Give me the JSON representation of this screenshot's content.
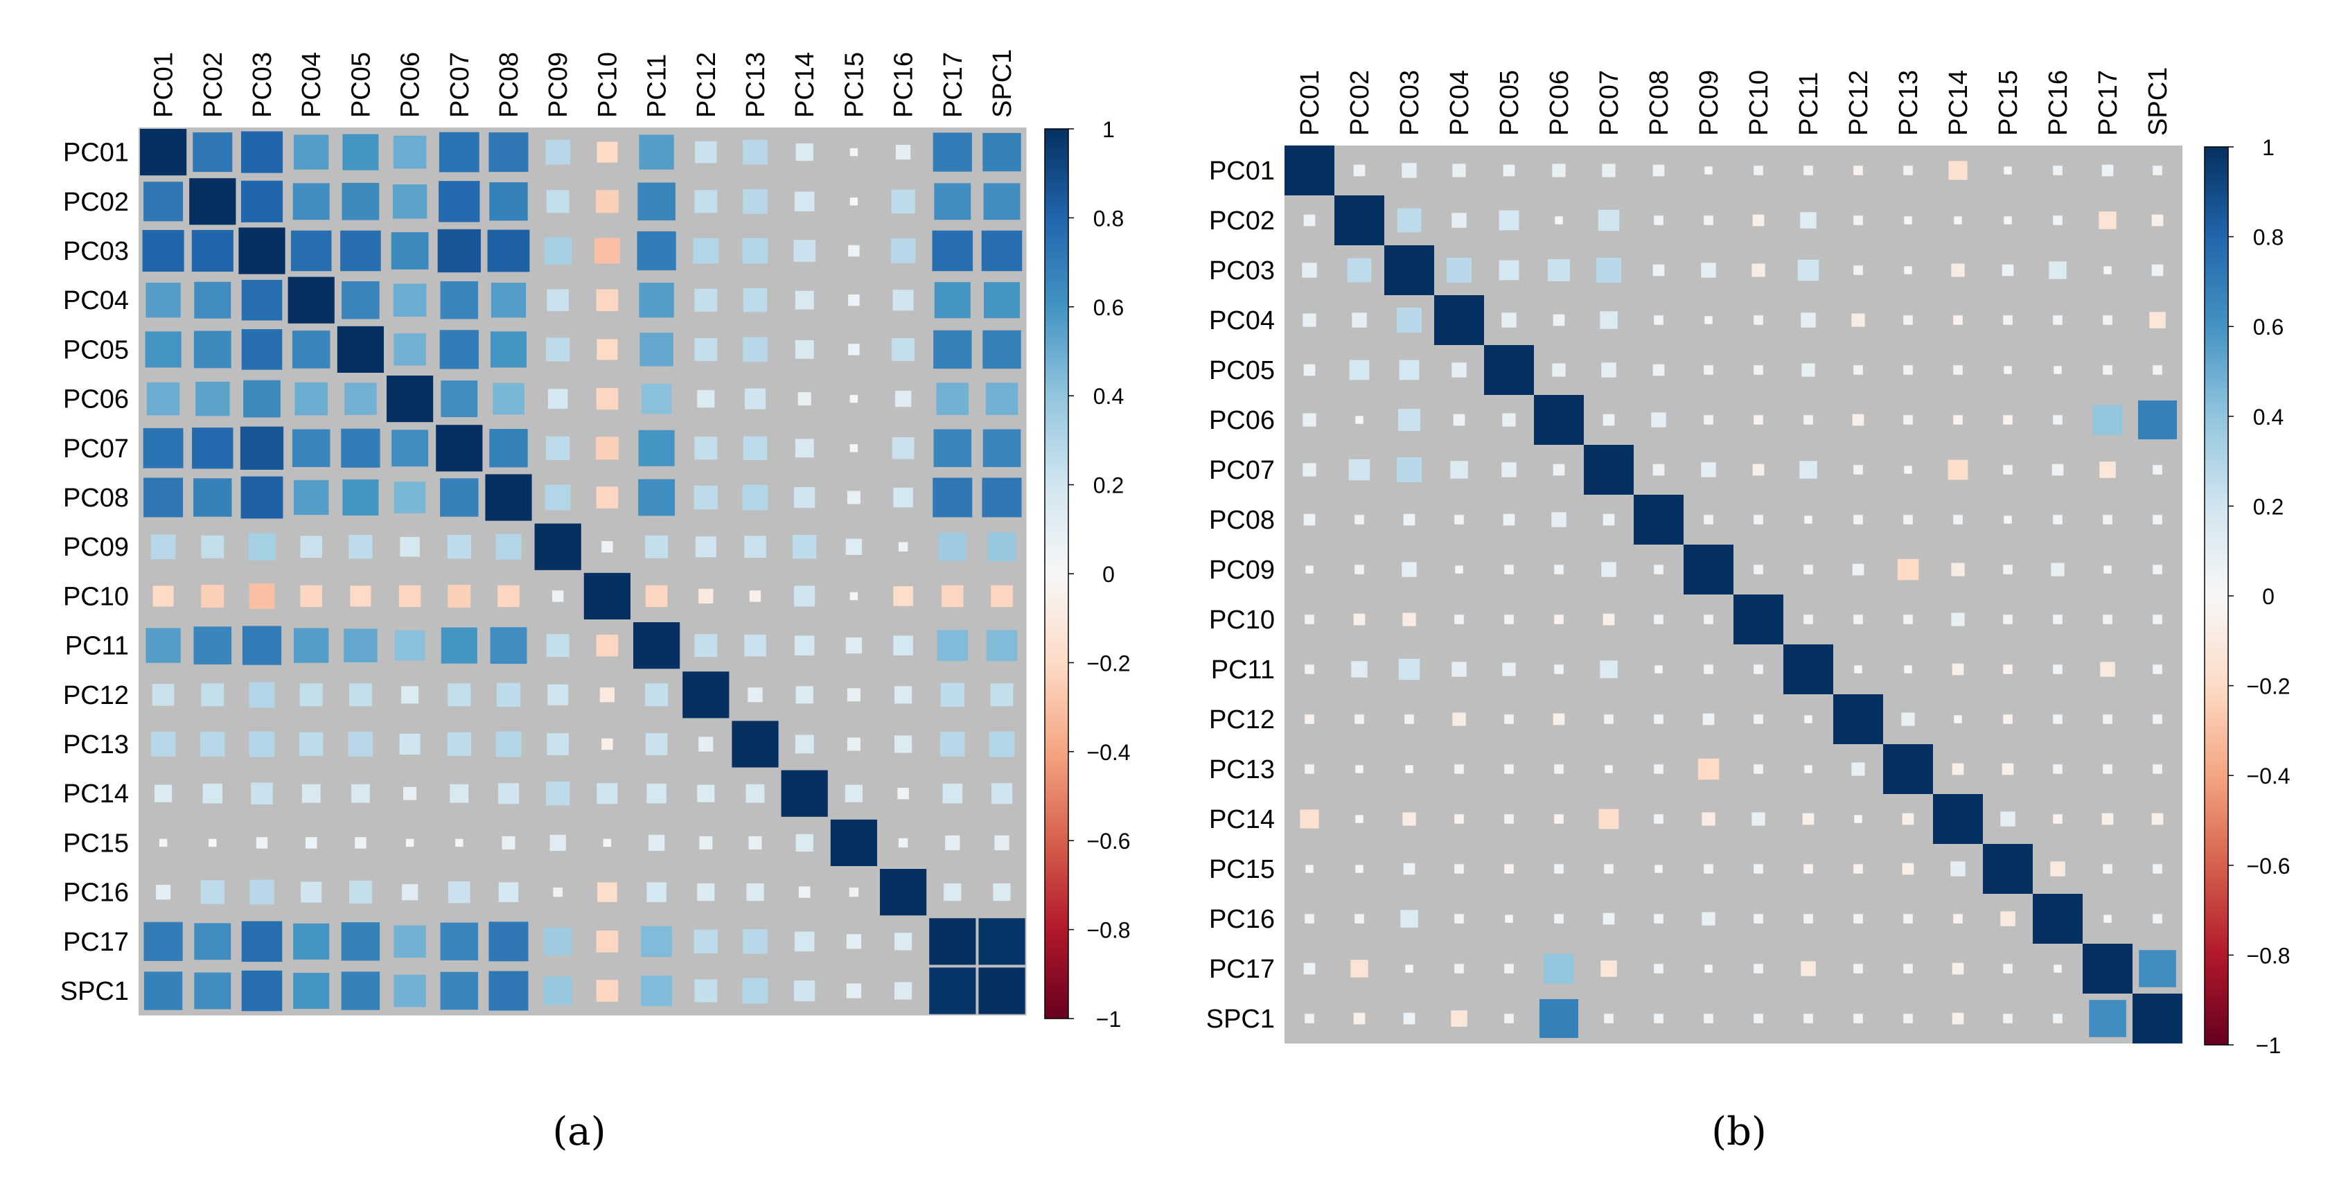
{
  "colors": {
    "background": "#bebebe",
    "grid_line": "#ffffff",
    "scale": [
      "#67001f",
      "#b2182b",
      "#d6604d",
      "#f4a582",
      "#fddbc7",
      "#f7f7f7",
      "#d1e5f0",
      "#92c5de",
      "#4393c3",
      "#2166ac",
      "#053061"
    ]
  },
  "chart_data": [
    {
      "type": "heatmap",
      "variant": "correlation matrix (square glyphs sized by |r|, coloured by r)",
      "caption": "(a)",
      "labels": [
        "PC01",
        "PC02",
        "PC03",
        "PC04",
        "PC05",
        "PC06",
        "PC07",
        "PC08",
        "PC09",
        "PC10",
        "PC11",
        "PC12",
        "PC13",
        "PC14",
        "PC15",
        "PC16",
        "PC17",
        "SPC1"
      ],
      "matrix": [
        [
          1.0,
          0.72,
          0.8,
          0.56,
          0.6,
          0.5,
          0.74,
          0.72,
          0.28,
          -0.2,
          0.56,
          0.22,
          0.28,
          0.14,
          0.02,
          0.1,
          0.7,
          0.68
        ],
        [
          0.72,
          1.0,
          0.8,
          0.62,
          0.64,
          0.54,
          0.78,
          0.68,
          0.24,
          -0.24,
          0.66,
          0.24,
          0.28,
          0.18,
          0.0,
          0.26,
          0.62,
          0.62
        ],
        [
          0.8,
          0.8,
          1.0,
          0.76,
          0.76,
          0.64,
          0.86,
          0.82,
          0.34,
          -0.3,
          0.7,
          0.3,
          0.3,
          0.22,
          0.06,
          0.28,
          0.76,
          0.76
        ],
        [
          0.56,
          0.62,
          0.76,
          1.0,
          0.66,
          0.5,
          0.66,
          0.56,
          0.22,
          -0.22,
          0.56,
          0.24,
          0.26,
          0.16,
          0.06,
          0.2,
          0.6,
          0.6
        ],
        [
          0.6,
          0.64,
          0.76,
          0.66,
          1.0,
          0.48,
          0.7,
          0.6,
          0.26,
          -0.2,
          0.52,
          0.24,
          0.28,
          0.16,
          0.06,
          0.24,
          0.68,
          0.68
        ],
        [
          0.5,
          0.54,
          0.64,
          0.5,
          0.48,
          1.0,
          0.62,
          0.46,
          0.18,
          -0.22,
          0.42,
          0.14,
          0.2,
          0.08,
          0.02,
          0.12,
          0.48,
          0.48
        ],
        [
          0.74,
          0.78,
          0.86,
          0.66,
          0.7,
          0.62,
          1.0,
          0.68,
          0.26,
          -0.24,
          0.6,
          0.24,
          0.26,
          0.16,
          0.02,
          0.22,
          0.66,
          0.66
        ],
        [
          0.72,
          0.68,
          0.82,
          0.56,
          0.6,
          0.46,
          0.68,
          1.0,
          0.3,
          -0.22,
          0.62,
          0.26,
          0.3,
          0.2,
          0.08,
          0.18,
          0.72,
          0.72
        ],
        [
          0.28,
          0.24,
          0.34,
          0.22,
          0.26,
          0.18,
          0.26,
          0.3,
          1.0,
          0.06,
          0.24,
          0.2,
          0.22,
          0.26,
          0.12,
          0.04,
          0.36,
          0.38
        ],
        [
          -0.2,
          -0.24,
          -0.3,
          -0.22,
          -0.2,
          -0.22,
          -0.24,
          -0.22,
          0.06,
          1.0,
          -0.22,
          -0.1,
          -0.06,
          0.2,
          0.02,
          -0.18,
          -0.22,
          -0.22
        ],
        [
          0.56,
          0.66,
          0.7,
          0.56,
          0.52,
          0.42,
          0.6,
          0.62,
          0.24,
          -0.22,
          1.0,
          0.24,
          0.22,
          0.18,
          0.12,
          0.18,
          0.44,
          0.44
        ],
        [
          0.22,
          0.24,
          0.3,
          0.24,
          0.24,
          0.14,
          0.24,
          0.26,
          0.2,
          -0.1,
          0.24,
          1.0,
          0.1,
          0.14,
          0.08,
          0.14,
          0.26,
          0.24
        ],
        [
          0.28,
          0.28,
          0.3,
          0.26,
          0.28,
          0.2,
          0.26,
          0.3,
          0.22,
          -0.06,
          0.22,
          0.1,
          1.0,
          0.16,
          0.08,
          0.14,
          0.28,
          0.3
        ],
        [
          0.14,
          0.18,
          0.22,
          0.16,
          0.16,
          0.08,
          0.16,
          0.2,
          0.26,
          0.2,
          0.18,
          0.14,
          0.16,
          1.0,
          0.14,
          0.06,
          0.18,
          0.2
        ],
        [
          0.02,
          0.0,
          0.06,
          0.06,
          0.06,
          0.02,
          0.02,
          0.08,
          0.12,
          0.02,
          0.12,
          0.08,
          0.08,
          0.14,
          1.0,
          0.04,
          0.1,
          0.1
        ],
        [
          0.1,
          0.26,
          0.28,
          0.2,
          0.24,
          0.12,
          0.22,
          0.18,
          0.04,
          -0.18,
          0.18,
          0.14,
          0.14,
          0.06,
          0.04,
          1.0,
          0.14,
          0.14
        ],
        [
          0.7,
          0.62,
          0.76,
          0.6,
          0.68,
          0.48,
          0.66,
          0.72,
          0.36,
          -0.22,
          0.44,
          0.26,
          0.28,
          0.18,
          0.1,
          0.14,
          1.0,
          0.98
        ],
        [
          0.68,
          0.62,
          0.76,
          0.6,
          0.68,
          0.48,
          0.66,
          0.72,
          0.38,
          -0.22,
          0.44,
          0.24,
          0.3,
          0.2,
          0.1,
          0.14,
          0.98,
          1.0
        ]
      ],
      "legend_ticks": [
        "1",
        "0.8",
        "0.6",
        "0.4",
        "0.2",
        "0",
        "−0.2",
        "−0.4",
        "−0.6",
        "−0.8",
        "−1"
      ],
      "clim": [
        -1,
        1
      ],
      "legend_position": "right"
    },
    {
      "type": "heatmap",
      "variant": "correlation matrix (square glyphs sized by |r|, coloured by r)",
      "caption": "(b)",
      "labels": [
        "PC01",
        "PC02",
        "PC03",
        "PC04",
        "PC05",
        "PC06",
        "PC07",
        "PC08",
        "PC09",
        "PC10",
        "PC11",
        "PC12",
        "PC13",
        "PC14",
        "PC15",
        "PC16",
        "PC17",
        "SPC1"
      ],
      "matrix": [
        [
          1.0,
          0.06,
          0.1,
          0.08,
          0.06,
          0.08,
          0.08,
          0.06,
          0.02,
          0.04,
          0.04,
          -0.04,
          0.04,
          -0.16,
          0.02,
          0.04,
          0.06,
          0.04
        ],
        [
          0.06,
          1.0,
          0.26,
          0.1,
          0.18,
          0.02,
          0.2,
          0.04,
          0.04,
          -0.06,
          0.12,
          0.04,
          0.02,
          0.02,
          0.02,
          0.04,
          -0.14,
          -0.06
        ],
        [
          0.1,
          0.26,
          1.0,
          0.28,
          0.18,
          0.22,
          0.28,
          0.06,
          0.1,
          -0.08,
          0.2,
          0.04,
          0.02,
          -0.08,
          0.06,
          0.14,
          0.02,
          0.06
        ],
        [
          0.08,
          0.1,
          0.28,
          1.0,
          0.1,
          0.06,
          0.14,
          0.04,
          0.02,
          0.04,
          0.1,
          -0.08,
          0.04,
          -0.04,
          0.04,
          0.04,
          0.04,
          -0.12
        ],
        [
          0.06,
          0.18,
          0.18,
          0.1,
          1.0,
          0.08,
          0.1,
          0.06,
          0.04,
          0.04,
          0.08,
          0.04,
          0.04,
          0.04,
          0.02,
          0.02,
          0.04,
          0.04
        ],
        [
          0.08,
          0.02,
          0.22,
          0.06,
          0.08,
          1.0,
          0.06,
          0.1,
          0.04,
          -0.04,
          0.04,
          -0.06,
          0.04,
          -0.04,
          -0.04,
          0.04,
          0.4,
          0.68
        ],
        [
          0.08,
          0.2,
          0.28,
          0.14,
          0.1,
          0.06,
          1.0,
          0.06,
          0.1,
          -0.06,
          0.14,
          0.04,
          0.02,
          -0.18,
          0.04,
          0.06,
          -0.12,
          0.04
        ],
        [
          0.06,
          0.04,
          0.06,
          0.04,
          0.06,
          0.1,
          0.06,
          1.0,
          0.04,
          0.04,
          0.02,
          0.04,
          0.04,
          0.04,
          0.02,
          0.04,
          0.04,
          0.04
        ],
        [
          0.02,
          0.04,
          0.1,
          0.02,
          0.04,
          0.04,
          0.1,
          0.04,
          1.0,
          0.04,
          0.04,
          0.06,
          -0.2,
          -0.08,
          0.04,
          0.08,
          0.02,
          0.04
        ],
        [
          0.04,
          -0.06,
          -0.08,
          0.04,
          0.04,
          -0.04,
          -0.06,
          0.04,
          0.04,
          1.0,
          0.04,
          0.04,
          0.04,
          0.08,
          0.04,
          0.04,
          0.04,
          0.04
        ],
        [
          0.04,
          0.12,
          0.2,
          0.1,
          0.08,
          0.04,
          0.14,
          0.02,
          0.04,
          0.04,
          1.0,
          0.02,
          0.02,
          -0.06,
          -0.04,
          0.04,
          -0.1,
          0.04
        ],
        [
          -0.04,
          0.04,
          0.04,
          -0.08,
          0.04,
          -0.06,
          0.04,
          0.04,
          0.06,
          0.04,
          0.02,
          1.0,
          0.08,
          0.01,
          -0.04,
          0.04,
          0.04,
          0.04
        ],
        [
          0.04,
          0.02,
          0.02,
          0.04,
          0.04,
          0.04,
          0.02,
          0.04,
          -0.2,
          0.04,
          0.02,
          0.08,
          1.0,
          -0.06,
          -0.06,
          0.04,
          0.04,
          0.04
        ],
        [
          -0.16,
          0.02,
          -0.08,
          -0.04,
          0.04,
          -0.04,
          -0.18,
          0.04,
          -0.08,
          0.08,
          -0.06,
          0.01,
          -0.06,
          1.0,
          0.1,
          -0.04,
          -0.06,
          -0.06
        ],
        [
          0.02,
          0.02,
          0.06,
          0.04,
          -0.04,
          0.04,
          0.04,
          0.02,
          0.04,
          0.04,
          -0.04,
          -0.04,
          -0.06,
          0.1,
          1.0,
          -0.1,
          0.04,
          0.04
        ],
        [
          0.04,
          0.04,
          0.14,
          0.04,
          0.02,
          0.04,
          0.06,
          0.04,
          0.08,
          0.04,
          0.04,
          0.04,
          0.04,
          -0.04,
          -0.1,
          1.0,
          0.02,
          0.04
        ],
        [
          0.06,
          -0.14,
          0.02,
          0.04,
          0.04,
          0.4,
          -0.12,
          0.04,
          0.02,
          0.04,
          -0.1,
          0.04,
          0.04,
          -0.06,
          0.04,
          0.02,
          1.0,
          0.62
        ],
        [
          0.04,
          -0.06,
          0.06,
          -0.12,
          0.04,
          0.68,
          0.04,
          0.04,
          0.04,
          0.04,
          0.04,
          0.04,
          0.04,
          -0.06,
          0.04,
          0.04,
          0.62,
          1.0
        ]
      ],
      "legend_ticks": [
        "1",
        "0.8",
        "0.6",
        "0.4",
        "0.2",
        "0",
        "−0.2",
        "−0.4",
        "−0.6",
        "−0.8",
        "−1"
      ],
      "clim": [
        -1,
        1
      ],
      "legend_position": "right"
    }
  ]
}
